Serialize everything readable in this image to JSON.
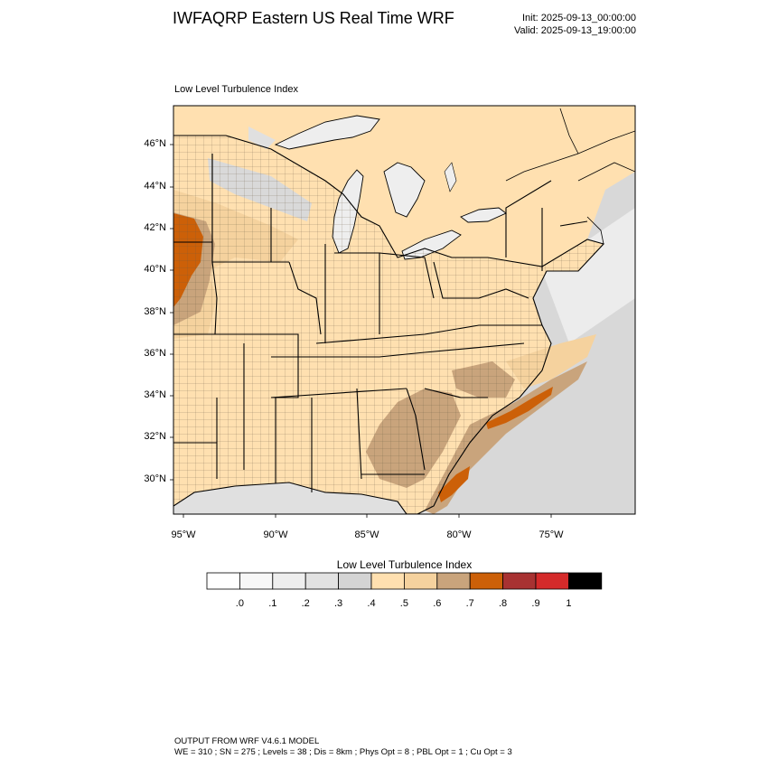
{
  "header": {
    "title": "IWFAQRP Eastern US Real Time WRF",
    "init": "Init: 2025-09-13_00:00:00",
    "valid": "Valid: 2025-09-13_19:00:00"
  },
  "plot": {
    "title": "Low Level Turbulence Index",
    "lat_labels": [
      "46°N",
      "44°N",
      "42°N",
      "40°N",
      "38°N",
      "36°N",
      "34°N",
      "32°N",
      "30°N"
    ],
    "lon_labels": [
      "95°W",
      "90°W",
      "85°W",
      "80°W",
      "75°W"
    ]
  },
  "colorbar": {
    "title": "Low Level Turbulence Index",
    "labels": [
      ".0",
      ".1",
      ".2",
      ".3",
      ".4",
      ".5",
      ".6",
      ".7",
      ".8",
      ".9",
      "1"
    ],
    "colors": [
      "#ffffff",
      "#f7f7f7",
      "#eeeeee",
      "#e2e2e2",
      "#d4d4d4",
      "#ffe0b0",
      "#f5d29e",
      "#c9a47c",
      "#cc6008",
      "#a83232",
      "#d42a2a",
      "#000000"
    ]
  },
  "footer": {
    "line1": "OUTPUT FROM WRF V4.6.1 MODEL",
    "line2": "WE = 310 ; SN = 275 ; Levels = 38 ; Dis = 8km ; Phys Opt = 8 ; PBL Opt = 1 ; Cu Opt = 3"
  }
}
